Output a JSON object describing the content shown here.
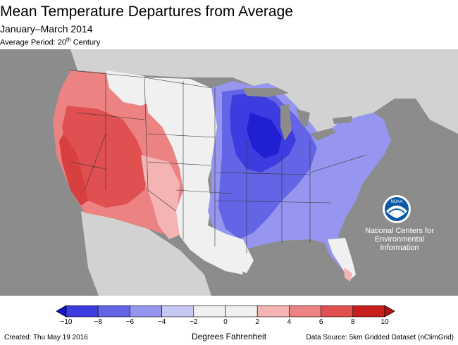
{
  "title": "Mean Temperature Departures from Average",
  "subtitle": "January–March 2014",
  "average_period": {
    "prefix": "Average Period: 20",
    "sup": "th",
    "suffix": " Century"
  },
  "legend": {
    "label": "Degrees Fahrenheit",
    "ticks": [
      "−10",
      "−8",
      "−6",
      "−4",
      "−2",
      "0",
      "2",
      "4",
      "6",
      "8",
      "10"
    ],
    "colors": [
      "#1414c8",
      "#3c3ce0",
      "#6464e6",
      "#9696f0",
      "#c8c8f6",
      "#f0f0f0",
      "#f0f0f0",
      "#f4b4b4",
      "#ec8282",
      "#e05050",
      "#c81e1e",
      "#b41414"
    ]
  },
  "created": "Created: Thu May 19 2016",
  "source": "Data Source: 5km Gridded Dataset (nClimGrid)",
  "noaa": {
    "logo_text": "NOAA",
    "line1": "National Centers for",
    "line2": "Environmental",
    "line3": "Information"
  },
  "colors": {
    "ocean": "#8c8c8c",
    "land_other": "#d2d2d2",
    "warm_strong": "#e05050",
    "warm_mid": "#ec8282",
    "warm_light": "#f4b4b4",
    "near_zero": "#f0f0f0",
    "cool_light": "#9696f0",
    "cool_mid": "#6464e6",
    "cool_strong": "#3c3ce0",
    "cool_deep": "#2020d2"
  }
}
